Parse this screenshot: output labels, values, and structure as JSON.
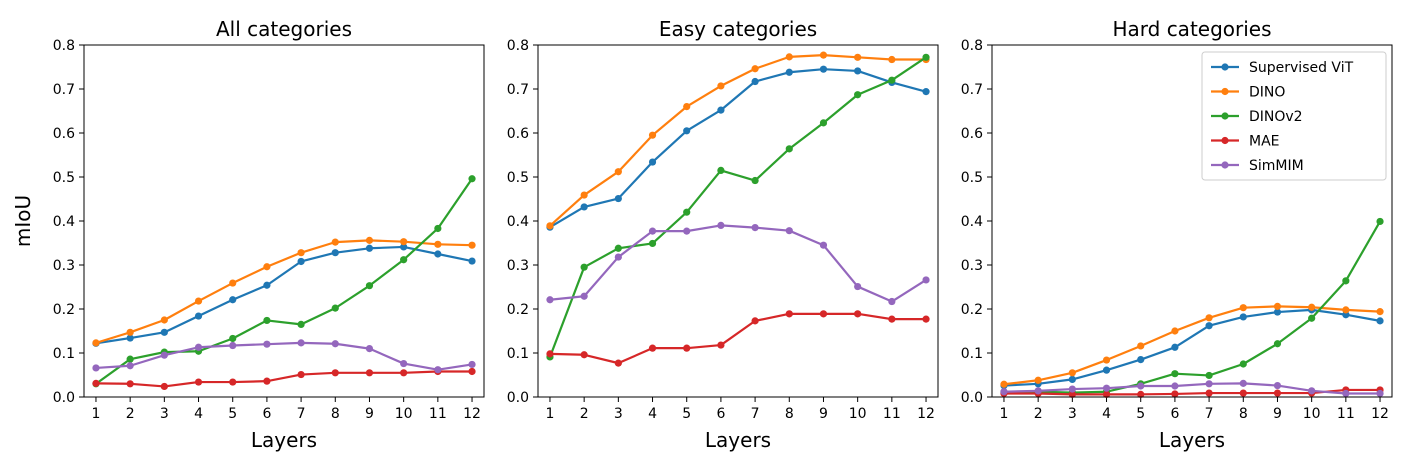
{
  "chart_data": [
    {
      "type": "line",
      "title": "All categories",
      "xlabel": "Layers",
      "ylabel": "mIoU",
      "x": [
        1,
        2,
        3,
        4,
        5,
        6,
        7,
        8,
        9,
        10,
        11,
        12
      ],
      "xticks": [
        "1",
        "2",
        "3",
        "4",
        "5",
        "6",
        "7",
        "8",
        "9",
        "10",
        "11",
        "12"
      ],
      "xlim": [
        0.65,
        12.35
      ],
      "ylim": [
        0.0,
        0.8
      ],
      "yticks": [
        "0.0",
        "0.1",
        "0.2",
        "0.3",
        "0.4",
        "0.5",
        "0.6",
        "0.7",
        "0.8"
      ],
      "legend": false,
      "series": [
        {
          "name": "Supervised ViT",
          "color": "#1f77b4",
          "values": [
            0.122,
            0.134,
            0.147,
            0.184,
            0.221,
            0.254,
            0.308,
            0.328,
            0.338,
            0.341,
            0.325,
            0.309
          ]
        },
        {
          "name": "DINO",
          "color": "#ff7f0e",
          "values": [
            0.123,
            0.147,
            0.175,
            0.218,
            0.259,
            0.296,
            0.328,
            0.352,
            0.356,
            0.353,
            0.347,
            0.345
          ]
        },
        {
          "name": "DINOv2",
          "color": "#2ca02c",
          "values": [
            0.03,
            0.086,
            0.102,
            0.104,
            0.133,
            0.174,
            0.165,
            0.202,
            0.253,
            0.312,
            0.383,
            0.496
          ]
        },
        {
          "name": "MAE",
          "color": "#d62728",
          "values": [
            0.031,
            0.03,
            0.024,
            0.034,
            0.034,
            0.036,
            0.051,
            0.055,
            0.055,
            0.055,
            0.058,
            0.058
          ]
        },
        {
          "name": "SimMIM",
          "color": "#9467bd",
          "values": [
            0.066,
            0.071,
            0.095,
            0.113,
            0.117,
            0.12,
            0.123,
            0.121,
            0.11,
            0.076,
            0.062,
            0.074
          ]
        }
      ]
    },
    {
      "type": "line",
      "title": "Easy categories",
      "xlabel": "Layers",
      "ylabel": "",
      "x": [
        1,
        2,
        3,
        4,
        5,
        6,
        7,
        8,
        9,
        10,
        11,
        12
      ],
      "xticks": [
        "1",
        "2",
        "3",
        "4",
        "5",
        "6",
        "7",
        "8",
        "9",
        "10",
        "11",
        "12"
      ],
      "xlim": [
        0.65,
        12.35
      ],
      "ylim": [
        0.0,
        0.8
      ],
      "yticks": [
        "0.0",
        "0.1",
        "0.2",
        "0.3",
        "0.4",
        "0.5",
        "0.6",
        "0.7",
        "0.8"
      ],
      "legend": false,
      "series": [
        {
          "name": "Supervised ViT",
          "color": "#1f77b4",
          "values": [
            0.386,
            0.432,
            0.451,
            0.534,
            0.605,
            0.652,
            0.717,
            0.738,
            0.745,
            0.741,
            0.715,
            0.694
          ]
        },
        {
          "name": "DINO",
          "color": "#ff7f0e",
          "values": [
            0.389,
            0.459,
            0.512,
            0.595,
            0.66,
            0.707,
            0.746,
            0.773,
            0.777,
            0.772,
            0.767,
            0.767
          ]
        },
        {
          "name": "DINOv2",
          "color": "#2ca02c",
          "values": [
            0.091,
            0.295,
            0.338,
            0.349,
            0.42,
            0.515,
            0.492,
            0.564,
            0.623,
            0.687,
            0.72,
            0.772
          ]
        },
        {
          "name": "MAE",
          "color": "#d62728",
          "values": [
            0.098,
            0.096,
            0.077,
            0.111,
            0.111,
            0.118,
            0.173,
            0.189,
            0.189,
            0.189,
            0.177,
            0.177
          ]
        },
        {
          "name": "SimMIM",
          "color": "#9467bd",
          "values": [
            0.221,
            0.229,
            0.318,
            0.377,
            0.377,
            0.39,
            0.385,
            0.378,
            0.345,
            0.251,
            0.217,
            0.266
          ]
        }
      ]
    },
    {
      "type": "line",
      "title": "Hard categories",
      "xlabel": "Layers",
      "ylabel": "",
      "x": [
        1,
        2,
        3,
        4,
        5,
        6,
        7,
        8,
        9,
        10,
        11,
        12
      ],
      "xticks": [
        "1",
        "2",
        "3",
        "4",
        "5",
        "6",
        "7",
        "8",
        "9",
        "10",
        "11",
        "12"
      ],
      "xlim": [
        0.65,
        12.35
      ],
      "ylim": [
        0.0,
        0.8
      ],
      "yticks": [
        "0.0",
        "0.1",
        "0.2",
        "0.3",
        "0.4",
        "0.5",
        "0.6",
        "0.7",
        "0.8"
      ],
      "legend": true,
      "legend_placement": "top-right",
      "series": [
        {
          "name": "Supervised ViT",
          "color": "#1f77b4",
          "values": [
            0.026,
            0.03,
            0.04,
            0.061,
            0.085,
            0.113,
            0.162,
            0.182,
            0.193,
            0.198,
            0.187,
            0.173
          ]
        },
        {
          "name": "DINO",
          "color": "#ff7f0e",
          "values": [
            0.029,
            0.038,
            0.055,
            0.084,
            0.116,
            0.15,
            0.18,
            0.203,
            0.206,
            0.204,
            0.198,
            0.194
          ]
        },
        {
          "name": "DINOv2",
          "color": "#2ca02c",
          "values": [
            0.01,
            0.012,
            0.01,
            0.012,
            0.03,
            0.053,
            0.049,
            0.075,
            0.121,
            0.179,
            0.264,
            0.399
          ]
        },
        {
          "name": "MAE",
          "color": "#d62728",
          "values": [
            0.008,
            0.008,
            0.006,
            0.006,
            0.006,
            0.007,
            0.009,
            0.009,
            0.009,
            0.009,
            0.016,
            0.016
          ]
        },
        {
          "name": "SimMIM",
          "color": "#9467bd",
          "values": [
            0.012,
            0.014,
            0.018,
            0.02,
            0.025,
            0.025,
            0.03,
            0.031,
            0.026,
            0.014,
            0.008,
            0.008
          ]
        }
      ]
    }
  ]
}
